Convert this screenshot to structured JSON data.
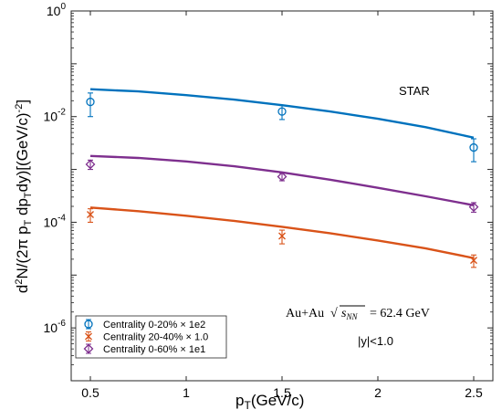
{
  "chart_data": {
    "type": "scatter",
    "xlabel": "p_T(GeV/c)",
    "ylabel": "d²N/(2π p_T dp_T dy)[(GeV/c)⁻²]",
    "xlim": [
      0.4,
      2.6
    ],
    "ylim_log10": [
      -7,
      0
    ],
    "y_scale": "log",
    "x_ticks": [
      0.5,
      1,
      1.5,
      2,
      2.5
    ],
    "x_tick_labels": [
      "0.5",
      "1",
      "1.5",
      "2",
      "2.5"
    ],
    "y_tick_exponents": [
      -6,
      -4,
      -2,
      0
    ],
    "annotations": {
      "experiment": "STAR",
      "system_prefix": "Au+Au",
      "energy_suffix": "= 62.4 GeV",
      "rapidity": "|y|<1.0"
    },
    "legend_position": "bottom-left",
    "series": [
      {
        "name": "Centrality  0-20% × 1e2",
        "color": "#0072BD",
        "marker": "circle",
        "x": [
          0.5,
          1.5,
          2.5
        ],
        "y": [
          0.019,
          0.0125,
          0.0026
        ],
        "yerr_low": [
          0.009,
          0.0037,
          0.0012
        ],
        "yerr_high": [
          0.009,
          0.0037,
          0.0012
        ],
        "fit_x": [
          0.5,
          0.75,
          1.0,
          1.25,
          1.5,
          1.75,
          2.0,
          2.25,
          2.5
        ],
        "fit_y": [
          0.033,
          0.03,
          0.0255,
          0.021,
          0.0165,
          0.0125,
          0.0091,
          0.0063,
          0.004
        ]
      },
      {
        "name": "Centrality 20-40% × 1.0",
        "color": "#D95319",
        "marker": "x",
        "x": [
          0.5,
          1.5,
          2.5
        ],
        "y": [
          0.00014,
          5.5e-05,
          1.9e-05
        ],
        "yerr_low": [
          4e-05,
          1.6e-05,
          5e-06
        ],
        "yerr_high": [
          4e-05,
          1.6e-05,
          5e-06
        ],
        "fit_x": [
          0.5,
          0.75,
          1.0,
          1.25,
          1.5,
          1.75,
          2.0,
          2.25,
          2.5
        ],
        "fit_y": [
          0.00019,
          0.000162,
          0.000133,
          0.000106,
          8.2e-05,
          6.2e-05,
          4.5e-05,
          3.2e-05,
          2.1e-05
        ]
      },
      {
        "name": "Centrality  0-60% × 1e1",
        "color": "#7E2F8E",
        "marker": "diamond",
        "x": [
          0.5,
          1.5,
          2.5
        ],
        "y": [
          0.00125,
          0.00073,
          0.000195
        ],
        "yerr_low": [
          0.00025,
          0.00012,
          4e-05
        ],
        "yerr_high": [
          0.00025,
          0.00012,
          4e-05
        ],
        "fit_x": [
          0.5,
          0.75,
          1.0,
          1.25,
          1.5,
          1.75,
          2.0,
          2.25,
          2.5
        ],
        "fit_y": [
          0.0018,
          0.00165,
          0.00142,
          0.00115,
          0.00088,
          0.00064,
          0.00045,
          0.00031,
          0.00021
        ]
      }
    ]
  }
}
